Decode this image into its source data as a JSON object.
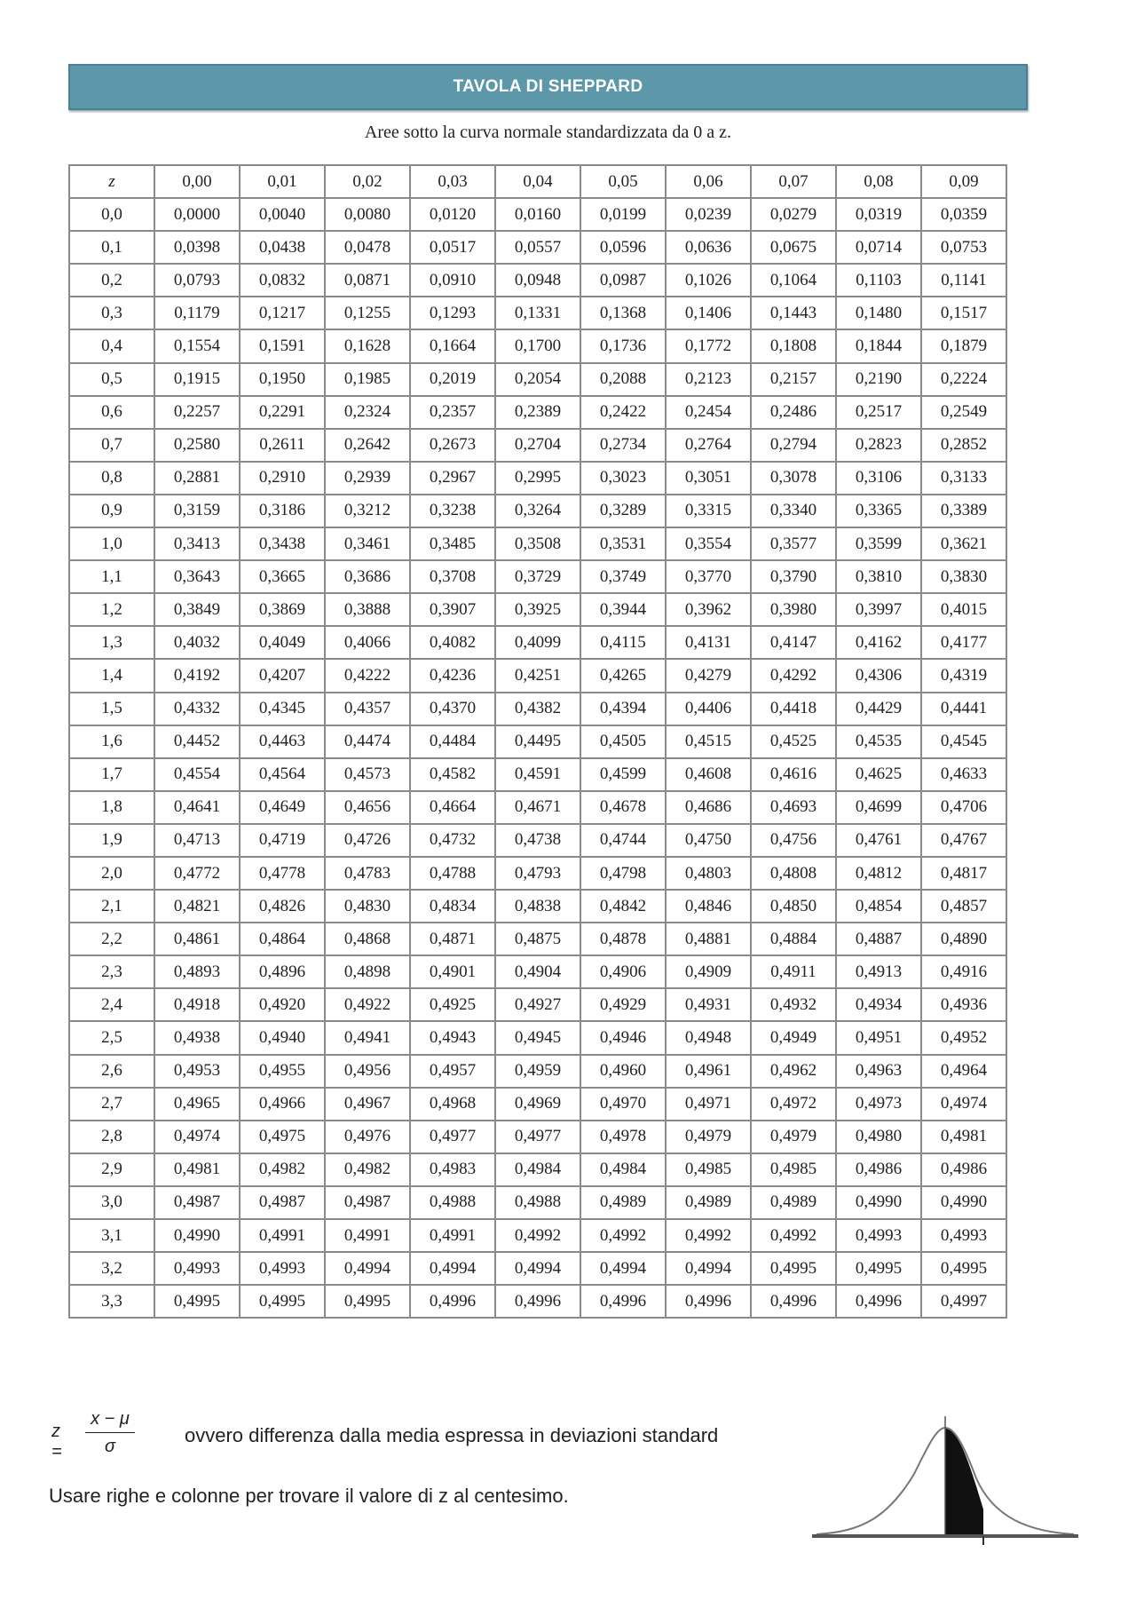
{
  "title": "TAVOLA DI SHEPPARD",
  "subtitle": "Aree sotto la curva normale standardizzata da 0 a z.",
  "table": {
    "header": [
      "z",
      "0,00",
      "0,01",
      "0,02",
      "0,03",
      "0,04",
      "0,05",
      "0,06",
      "0,07",
      "0,08",
      "0,09"
    ],
    "rows": [
      [
        "0,0",
        "0,0000",
        "0,0040",
        "0,0080",
        "0,0120",
        "0,0160",
        "0,0199",
        "0,0239",
        "0,0279",
        "0,0319",
        "0,0359"
      ],
      [
        "0,1",
        "0,0398",
        "0,0438",
        "0,0478",
        "0,0517",
        "0,0557",
        "0,0596",
        "0,0636",
        "0,0675",
        "0,0714",
        "0,0753"
      ],
      [
        "0,2",
        "0,0793",
        "0,0832",
        "0,0871",
        "0,0910",
        "0,0948",
        "0,0987",
        "0,1026",
        "0,1064",
        "0,1103",
        "0,1141"
      ],
      [
        "0,3",
        "0,1179",
        "0,1217",
        "0,1255",
        "0,1293",
        "0,1331",
        "0,1368",
        "0,1406",
        "0,1443",
        "0,1480",
        "0,1517"
      ],
      [
        "0,4",
        "0,1554",
        "0,1591",
        "0,1628",
        "0,1664",
        "0,1700",
        "0,1736",
        "0,1772",
        "0,1808",
        "0,1844",
        "0,1879"
      ],
      [
        "0,5",
        "0,1915",
        "0,1950",
        "0,1985",
        "0,2019",
        "0,2054",
        "0,2088",
        "0,2123",
        "0,2157",
        "0,2190",
        "0,2224"
      ],
      [
        "0,6",
        "0,2257",
        "0,2291",
        "0,2324",
        "0,2357",
        "0,2389",
        "0,2422",
        "0,2454",
        "0,2486",
        "0,2517",
        "0,2549"
      ],
      [
        "0,7",
        "0,2580",
        "0,2611",
        "0,2642",
        "0,2673",
        "0,2704",
        "0,2734",
        "0,2764",
        "0,2794",
        "0,2823",
        "0,2852"
      ],
      [
        "0,8",
        "0,2881",
        "0,2910",
        "0,2939",
        "0,2967",
        "0,2995",
        "0,3023",
        "0,3051",
        "0,3078",
        "0,3106",
        "0,3133"
      ],
      [
        "0,9",
        "0,3159",
        "0,3186",
        "0,3212",
        "0,3238",
        "0,3264",
        "0,3289",
        "0,3315",
        "0,3340",
        "0,3365",
        "0,3389"
      ],
      [
        "1,0",
        "0,3413",
        "0,3438",
        "0,3461",
        "0,3485",
        "0,3508",
        "0,3531",
        "0,3554",
        "0,3577",
        "0,3599",
        "0,3621"
      ],
      [
        "1,1",
        "0,3643",
        "0,3665",
        "0,3686",
        "0,3708",
        "0,3729",
        "0,3749",
        "0,3770",
        "0,3790",
        "0,3810",
        "0,3830"
      ],
      [
        "1,2",
        "0,3849",
        "0,3869",
        "0,3888",
        "0,3907",
        "0,3925",
        "0,3944",
        "0,3962",
        "0,3980",
        "0,3997",
        "0,4015"
      ],
      [
        "1,3",
        "0,4032",
        "0,4049",
        "0,4066",
        "0,4082",
        "0,4099",
        "0,4115",
        "0,4131",
        "0,4147",
        "0,4162",
        "0,4177"
      ],
      [
        "1,4",
        "0,4192",
        "0,4207",
        "0,4222",
        "0,4236",
        "0,4251",
        "0,4265",
        "0,4279",
        "0,4292",
        "0,4306",
        "0,4319"
      ],
      [
        "1,5",
        "0,4332",
        "0,4345",
        "0,4357",
        "0,4370",
        "0,4382",
        "0,4394",
        "0,4406",
        "0,4418",
        "0,4429",
        "0,4441"
      ],
      [
        "1,6",
        "0,4452",
        "0,4463",
        "0,4474",
        "0,4484",
        "0,4495",
        "0,4505",
        "0,4515",
        "0,4525",
        "0,4535",
        "0,4545"
      ],
      [
        "1,7",
        "0,4554",
        "0,4564",
        "0,4573",
        "0,4582",
        "0,4591",
        "0,4599",
        "0,4608",
        "0,4616",
        "0,4625",
        "0,4633"
      ],
      [
        "1,8",
        "0,4641",
        "0,4649",
        "0,4656",
        "0,4664",
        "0,4671",
        "0,4678",
        "0,4686",
        "0,4693",
        "0,4699",
        "0,4706"
      ],
      [
        "1,9",
        "0,4713",
        "0,4719",
        "0,4726",
        "0,4732",
        "0,4738",
        "0,4744",
        "0,4750",
        "0,4756",
        "0,4761",
        "0,4767"
      ],
      [
        "2,0",
        "0,4772",
        "0,4778",
        "0,4783",
        "0,4788",
        "0,4793",
        "0,4798",
        "0,4803",
        "0,4808",
        "0,4812",
        "0,4817"
      ],
      [
        "2,1",
        "0,4821",
        "0,4826",
        "0,4830",
        "0,4834",
        "0,4838",
        "0,4842",
        "0,4846",
        "0,4850",
        "0,4854",
        "0,4857"
      ],
      [
        "2,2",
        "0,4861",
        "0,4864",
        "0,4868",
        "0,4871",
        "0,4875",
        "0,4878",
        "0,4881",
        "0,4884",
        "0,4887",
        "0,4890"
      ],
      [
        "2,3",
        "0,4893",
        "0,4896",
        "0,4898",
        "0,4901",
        "0,4904",
        "0,4906",
        "0,4909",
        "0,4911",
        "0,4913",
        "0,4916"
      ],
      [
        "2,4",
        "0,4918",
        "0,4920",
        "0,4922",
        "0,4925",
        "0,4927",
        "0,4929",
        "0,4931",
        "0,4932",
        "0,4934",
        "0,4936"
      ],
      [
        "2,5",
        "0,4938",
        "0,4940",
        "0,4941",
        "0,4943",
        "0,4945",
        "0,4946",
        "0,4948",
        "0,4949",
        "0,4951",
        "0,4952"
      ],
      [
        "2,6",
        "0,4953",
        "0,4955",
        "0,4956",
        "0,4957",
        "0,4959",
        "0,4960",
        "0,4961",
        "0,4962",
        "0,4963",
        "0,4964"
      ],
      [
        "2,7",
        "0,4965",
        "0,4966",
        "0,4967",
        "0,4968",
        "0,4969",
        "0,4970",
        "0,4971",
        "0,4972",
        "0,4973",
        "0,4974"
      ],
      [
        "2,8",
        "0,4974",
        "0,4975",
        "0,4976",
        "0,4977",
        "0,4977",
        "0,4978",
        "0,4979",
        "0,4979",
        "0,4980",
        "0,4981"
      ],
      [
        "2,9",
        "0,4981",
        "0,4982",
        "0,4982",
        "0,4983",
        "0,4984",
        "0,4984",
        "0,4985",
        "0,4985",
        "0,4986",
        "0,4986"
      ],
      [
        "3,0",
        "0,4987",
        "0,4987",
        "0,4987",
        "0,4988",
        "0,4988",
        "0,4989",
        "0,4989",
        "0,4989",
        "0,4990",
        "0,4990"
      ],
      [
        "3,1",
        "0,4990",
        "0,4991",
        "0,4991",
        "0,4991",
        "0,4992",
        "0,4992",
        "0,4992",
        "0,4992",
        "0,4993",
        "0,4993"
      ],
      [
        "3,2",
        "0,4993",
        "0,4993",
        "0,4994",
        "0,4994",
        "0,4994",
        "0,4994",
        "0,4994",
        "0,4995",
        "0,4995",
        "0,4995"
      ],
      [
        "3,3",
        "0,4995",
        "0,4995",
        "0,4995",
        "0,4996",
        "0,4996",
        "0,4996",
        "0,4996",
        "0,4996",
        "0,4996",
        "0,4997"
      ]
    ]
  },
  "formula": {
    "lhs": "z =",
    "numerator": "x − μ",
    "denominator": "σ"
  },
  "formula_description": "ovvero differenza dalla media espressa in deviazioni standard",
  "instructions": "Usare righe e colonne per trovare il valore di z al centesimo.",
  "colors": {
    "title_bar": "#5d97aa",
    "shaded_area": "#111111"
  },
  "illustration": "normal-curve-shaded-area-icon"
}
